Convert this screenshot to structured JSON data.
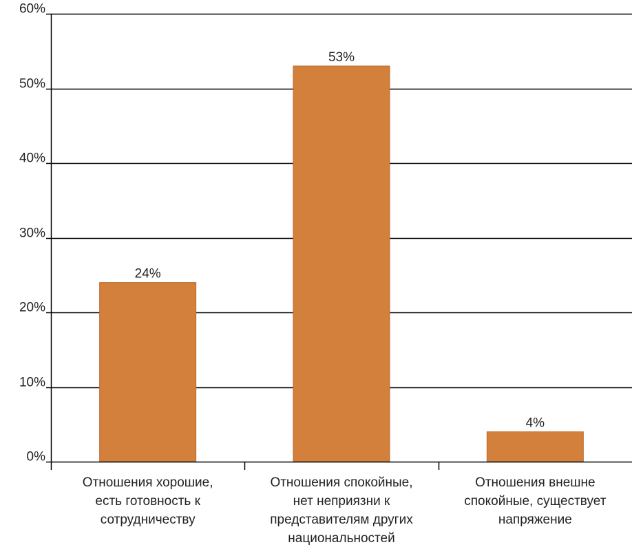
{
  "chart_data": {
    "type": "bar",
    "categories": [
      [
        "Отношения хорошие,",
        "есть готовность к",
        "сотрудничеству"
      ],
      [
        "Отношения спокойные,",
        "нет неприязни к",
        "представителям других",
        "национальностей"
      ],
      [
        "Отношения внешне",
        "спокойные, существует",
        "напряжение"
      ]
    ],
    "values": [
      24,
      53,
      4
    ],
    "data_labels": [
      "24%",
      "53%",
      "4%"
    ],
    "ylim": [
      0,
      60
    ],
    "yticks": [
      0,
      10,
      20,
      30,
      40,
      50,
      60
    ],
    "ytick_labels": [
      "0%",
      "10%",
      "20%",
      "30%",
      "40%",
      "50%",
      "60%"
    ],
    "grid": true,
    "legend": "none",
    "colors": {
      "bar": "#d4803d",
      "bar_edge": "#b86a2c",
      "grid": "#000000",
      "axis": "#000000"
    }
  }
}
